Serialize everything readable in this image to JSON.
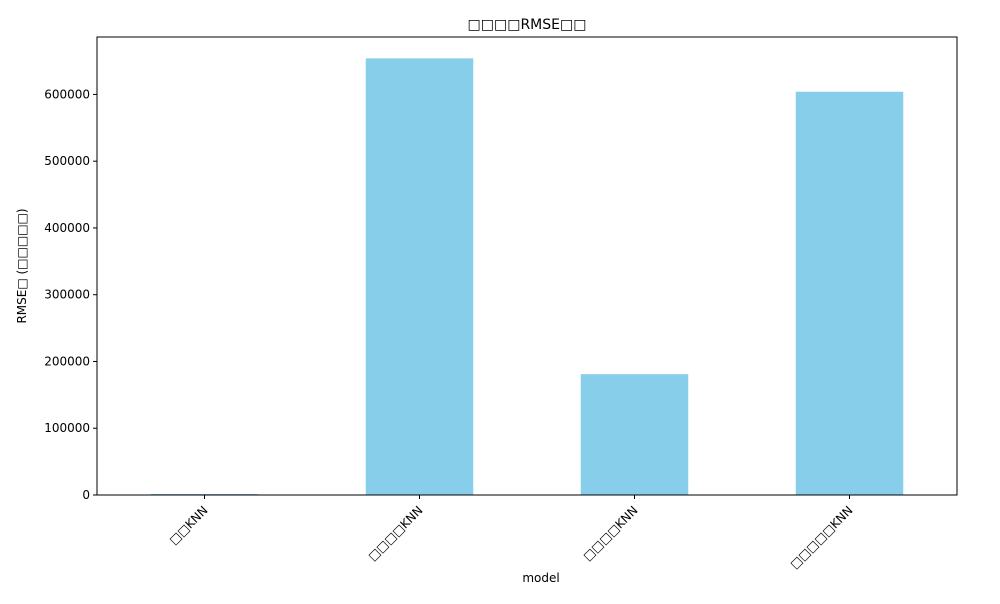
{
  "chart_data": {
    "type": "bar",
    "title": "□□□□RMSE□□",
    "xlabel": "model",
    "ylabel": "RMSE□ (□□□□□)",
    "categories": [
      "□□KNN",
      "□□□□KNN",
      "□□□□KNN",
      "□□□□□KNN"
    ],
    "values": [
      1500,
      654000,
      181000,
      604000
    ],
    "ylim": [
      0,
      686000
    ],
    "yticks": [
      0,
      100000,
      200000,
      300000,
      400000,
      500000,
      600000
    ],
    "ytick_labels": [
      "0",
      "100000",
      "200000",
      "300000",
      "400000",
      "500000",
      "600000"
    ],
    "grid": false,
    "legend": "none",
    "bar_color": "#87ceeb",
    "axis_color": "#000000"
  }
}
